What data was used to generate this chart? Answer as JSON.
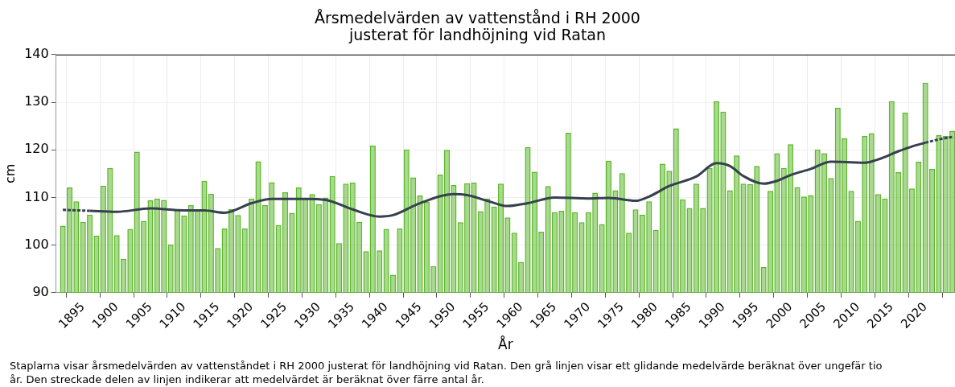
{
  "chart_data": {
    "type": "bar",
    "title": "Årsmedelvärden av vattenstånd i RH 2000\njusterat för landhöjning vid Ratan",
    "xlabel": "År",
    "ylabel": "cm",
    "x": [
      1892,
      1893,
      1894,
      1895,
      1896,
      1897,
      1898,
      1899,
      1900,
      1901,
      1902,
      1903,
      1904,
      1905,
      1906,
      1907,
      1908,
      1909,
      1910,
      1911,
      1912,
      1913,
      1914,
      1915,
      1916,
      1917,
      1918,
      1919,
      1920,
      1921,
      1922,
      1923,
      1924,
      1925,
      1926,
      1927,
      1928,
      1929,
      1930,
      1931,
      1932,
      1933,
      1934,
      1935,
      1936,
      1937,
      1938,
      1939,
      1940,
      1941,
      1942,
      1943,
      1944,
      1945,
      1946,
      1947,
      1948,
      1949,
      1950,
      1951,
      1952,
      1953,
      1954,
      1955,
      1956,
      1957,
      1958,
      1959,
      1960,
      1961,
      1962,
      1963,
      1964,
      1965,
      1966,
      1967,
      1968,
      1969,
      1970,
      1971,
      1972,
      1973,
      1974,
      1975,
      1976,
      1977,
      1978,
      1979,
      1980,
      1981,
      1982,
      1983,
      1984,
      1985,
      1986,
      1987,
      1988,
      1989,
      1990,
      1991,
      1992,
      1993,
      1994,
      1995,
      1996,
      1997,
      1998,
      1999,
      2000,
      2001,
      2002,
      2003,
      2004,
      2005,
      2006,
      2007,
      2008,
      2009,
      2010,
      2011,
      2012,
      2013,
      2014,
      2015,
      2016,
      2017,
      2018,
      2019,
      2020,
      2021,
      2022,
      2023,
      2024
    ],
    "series": [
      {
        "type": "bar",
        "color": "#5cb82b",
        "values": [
          104.1,
          112.1,
          109.2,
          104.9,
          106.4,
          102,
          112.5,
          116.2,
          102.1,
          97.1,
          103.4,
          119.6,
          105.1,
          109.4,
          109.8,
          109.5,
          100.1,
          107.4,
          106.2,
          108.4,
          107.5,
          113.5,
          110.8,
          99.4,
          103.5,
          107.6,
          106.3,
          103.5,
          109.8,
          117.6,
          108.4,
          113.2,
          104.2,
          111.1,
          106.8,
          112.1,
          109.7,
          110.7,
          108.6,
          110,
          114.5,
          100.4,
          112.9,
          113.1,
          104.9,
          98.7,
          120.9,
          98.9,
          103.4,
          93.8,
          103.5,
          120.1,
          114.2,
          110.4,
          109.1,
          95.6,
          114.8,
          120,
          112.6,
          104.8,
          113,
          113.1,
          107.1,
          109.8,
          108.1,
          112.9,
          105.8,
          102.6,
          96.5,
          120.6,
          115.4,
          102.8,
          112.4,
          106.9,
          107.2,
          123.6,
          106.9,
          104.8,
          106.9,
          111,
          104.4,
          117.7,
          111.5,
          115.1,
          102.6,
          107.5,
          106.4,
          109.2,
          103.2,
          117.1,
          115.6,
          124.5,
          109.6,
          107.8,
          112.9,
          107.8,
          116.2,
          130.2,
          128,
          111.5,
          118.8,
          112.9,
          112.8,
          116.6,
          95.4,
          111.4,
          119.3,
          116.2,
          121.2,
          112.2,
          110.2,
          110.5,
          120.1,
          119.3,
          114.1,
          128.8,
          122.4,
          111.4,
          105.1,
          122.9,
          123.5,
          110.7,
          109.8,
          130.2,
          115.3,
          127.8,
          111.9,
          117.5,
          134.1,
          116,
          123.1,
          122.9,
          124
        ]
      },
      {
        "type": "line",
        "color": "#36404f",
        "line_style": "dashed",
        "x": [
          1892,
          1894,
          1896
        ],
        "values": [
          107.4,
          107.3,
          107.2
        ]
      },
      {
        "type": "line",
        "color": "#36404f",
        "line_style": "solid",
        "x": [
          1896,
          1900,
          1905,
          1910,
          1913,
          1916,
          1920,
          1923,
          1928,
          1931,
          1935,
          1939,
          1941,
          1945,
          1950,
          1952,
          1955,
          1958,
          1961,
          1965,
          1970,
          1973,
          1977,
          1979,
          1982,
          1986,
          1989,
          1991,
          1993,
          1996,
          1998,
          2000,
          2003,
          2006,
          2009,
          2011,
          2013,
          2016,
          2018,
          2020
        ],
        "values": [
          107.2,
          107.0,
          107.7,
          107.3,
          107.3,
          106.8,
          108.8,
          109.7,
          109.7,
          109.5,
          107.5,
          106.0,
          106.3,
          108.8,
          110.7,
          110.5,
          109.3,
          108.2,
          108.8,
          110.0,
          109.8,
          109.9,
          109.3,
          110.2,
          112.4,
          114.4,
          117.2,
          116.6,
          114.5,
          112.9,
          113.5,
          114.7,
          116.0,
          117.5,
          117.4,
          117.3,
          118.0,
          119.7,
          120.7,
          121.5
        ]
      },
      {
        "type": "line",
        "color": "#36404f",
        "line_style": "dashed",
        "x": [
          2020,
          2022,
          2024
        ],
        "values": [
          121.5,
          122.2,
          122.7
        ]
      }
    ],
    "xlim": [
      1891,
      2024.4
    ],
    "xticks": [
      1895,
      1900,
      1905,
      1910,
      1915,
      1920,
      1925,
      1930,
      1935,
      1940,
      1945,
      1950,
      1955,
      1960,
      1965,
      1970,
      1975,
      1980,
      1985,
      1990,
      1995,
      2000,
      2005,
      2010,
      2015,
      2020
    ],
    "ylim": [
      90,
      140
    ],
    "yticks": [
      90,
      100,
      110,
      120,
      130,
      140
    ],
    "grid": true,
    "legend": false,
    "annotations": [
      "Staplarna visar årsmedelvärden av vattenståndet i RH 2000 justerat för landhöjning vid Ratan. Den grå linjen visar ett glidande medelvärde beräknat över ungefär tio år. Den streckade delen av linjen indikerar att medelvärdet är beräknat över färre antal år."
    ]
  }
}
